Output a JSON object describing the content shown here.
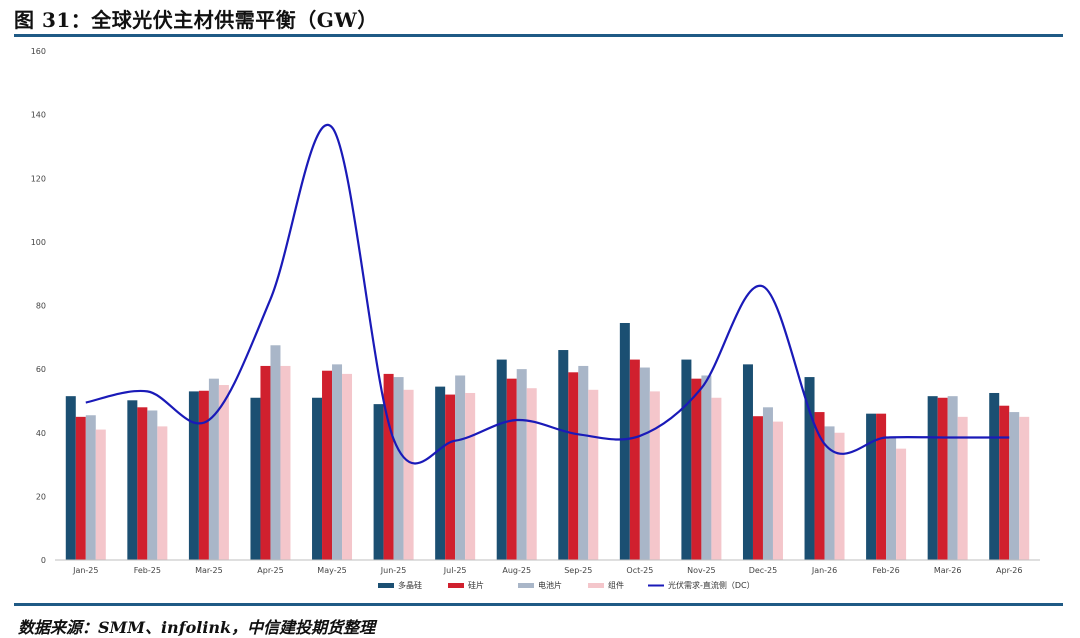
{
  "header": {
    "title": "图 31：全球光伏主材供需平衡（GW）"
  },
  "footer": {
    "source": "数据来源：SMM、infolink，中信建投期货整理"
  },
  "chart_data": {
    "type": "bar",
    "title": "图 31：全球光伏主材供需平衡（GW）",
    "categories": [
      "Jan-25",
      "Feb-25",
      "Mar-25",
      "Apr-25",
      "May-25",
      "Jun-25",
      "Jul-25",
      "Aug-25",
      "Sep-25",
      "Oct-25",
      "Nov-25",
      "Dec-25",
      "Jan-26",
      "Feb-26",
      "Mar-26",
      "Apr-26"
    ],
    "ylim": [
      0,
      160
    ],
    "yticks": [
      0,
      20,
      40,
      60,
      80,
      100,
      120,
      140,
      160
    ],
    "grid": false,
    "legend_position": "bottom",
    "series": [
      {
        "name": "多晶硅",
        "kind": "bar",
        "color": "#1b4f72",
        "values": [
          51.5,
          50.2,
          53,
          51,
          51,
          49,
          54.5,
          63,
          66,
          74.5,
          63,
          61.5,
          57.5,
          46,
          51.5,
          52.5
        ]
      },
      {
        "name": "硅片",
        "kind": "bar",
        "color": "#d0202e",
        "values": [
          45,
          48,
          53.2,
          61,
          59.5,
          58.5,
          52,
          57,
          59,
          63,
          57,
          45.2,
          46.5,
          46,
          51,
          48.5
        ]
      },
      {
        "name": "电池片",
        "kind": "bar",
        "color": "#a9b6c8",
        "values": [
          45.5,
          47,
          57,
          67.5,
          61.5,
          57.5,
          58,
          60,
          61,
          60.5,
          58,
          48,
          42,
          38.5,
          51.5,
          46.5
        ]
      },
      {
        "name": "组件",
        "kind": "bar",
        "color": "#f4c6cb",
        "values": [
          41,
          42,
          55,
          61,
          58.5,
          53.5,
          52.5,
          54,
          53.5,
          53,
          51,
          43.5,
          40,
          35,
          45,
          45
        ]
      },
      {
        "name": "光伏需求-直流侧（DC）",
        "kind": "line",
        "color": "#1a1ab8",
        "values": [
          49.5,
          53,
          44,
          82,
          136,
          38,
          37.5,
          44,
          39.5,
          39,
          54,
          86,
          36.5,
          38.5,
          38.5,
          38.5
        ]
      }
    ]
  }
}
